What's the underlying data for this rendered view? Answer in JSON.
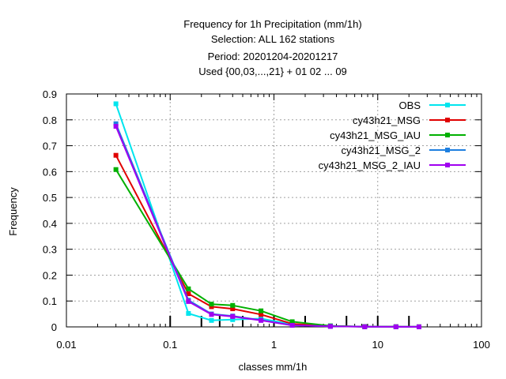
{
  "chart_data": {
    "type": "line",
    "title_lines": [
      "Frequency  for 1h Precipitation (mm/1h)",
      "Selection: ALL    162 stations",
      "Period: 20201204-20201217",
      "Used {00,03,...,21} + 01 02 ... 09"
    ],
    "xlabel": "classes mm/1h",
    "ylabel": "Frequency",
    "x_scale": "log",
    "xlim": [
      0.01,
      100
    ],
    "ylim": [
      0,
      0.9
    ],
    "x_ticks": [
      0.01,
      0.1,
      1,
      10,
      100
    ],
    "x_tick_labels": [
      "0.01",
      "0.1",
      "1",
      "10",
      "100"
    ],
    "y_ticks": [
      0,
      0.1,
      0.2,
      0.3,
      0.4,
      0.5,
      0.6,
      0.7,
      0.8,
      0.9
    ],
    "y_tick_labels": [
      "0",
      "0.1",
      "0.2",
      "0.3",
      "0.4",
      "0.5",
      "0.6",
      "0.7",
      "0.8",
      "0.9"
    ],
    "class_limits": [
      0.1,
      0.2,
      0.3,
      0.5,
      1,
      2,
      5,
      10,
      20
    ],
    "grid": true,
    "legend_position": "top-right",
    "x": [
      0.03,
      0.15,
      0.25,
      0.4,
      0.75,
      1.5,
      3.5,
      7.5,
      15,
      25
    ],
    "series": [
      {
        "name": "OBS",
        "color": "#00e5ee",
        "values": [
          0.862,
          0.052,
          0.025,
          0.028,
          0.032,
          0.01,
          0.004,
          0.001,
          0.0005,
          0.0003
        ]
      },
      {
        "name": "cy43h21_MSG",
        "color": "#e00000",
        "values": [
          0.663,
          0.128,
          0.078,
          0.07,
          0.048,
          0.012,
          0.003,
          0.001,
          0.0005,
          0.0003
        ]
      },
      {
        "name": "cy43h21_MSG_IAU",
        "color": "#00b000",
        "values": [
          0.608,
          0.147,
          0.088,
          0.083,
          0.062,
          0.02,
          0.004,
          0.001,
          0.0005,
          0.0003
        ]
      },
      {
        "name": "cy43h21_MSG_2",
        "color": "#1e7fe0",
        "values": [
          0.785,
          0.103,
          0.05,
          0.042,
          0.026,
          0.006,
          0.002,
          0.0005,
          0.0003,
          0.0002
        ]
      },
      {
        "name": "cy43h21_MSG_2_IAU",
        "color": "#a000f0",
        "values": [
          0.775,
          0.098,
          0.048,
          0.04,
          0.025,
          0.006,
          0.002,
          0.0005,
          0.0003,
          0.0002
        ]
      }
    ]
  }
}
